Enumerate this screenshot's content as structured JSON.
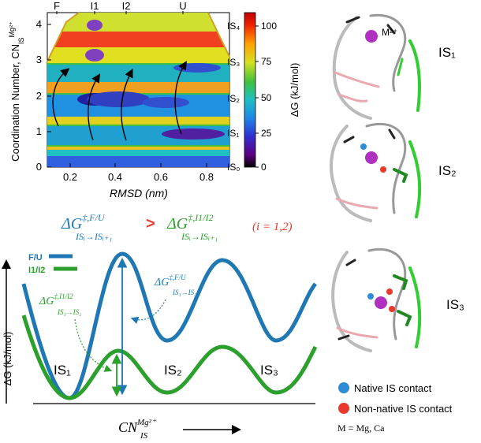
{
  "heatmap": {
    "ylabel": "Coordination Number, CN",
    "ylabel_sup": "Mg²⁺",
    "ylabel_sub": "IS",
    "xlabel": "RMSD (nm)",
    "xticks": [
      "0.2",
      "0.4",
      "0.6",
      "0.8"
    ],
    "yticks": [
      "0",
      "1",
      "2",
      "3",
      "4"
    ],
    "top_labels": [
      "F",
      "I1",
      "I2",
      "U"
    ],
    "state_labels": [
      "IS₄",
      "IS₃",
      "IS₂",
      "IS₁",
      "IS₀"
    ],
    "colorbar_label": "ΔG (kJ/mol)",
    "colorbar_ticks": [
      "100",
      "75",
      "50",
      "25",
      "0"
    ]
  },
  "comparison": {
    "left_main": "ΔG",
    "left_sup": "‡,F/U",
    "left_sub": "ISᵢ→ISᵢ₊₁",
    "gt": ">",
    "right_main": "ΔG",
    "right_sup": "‡,I1/I2",
    "right_sub": "ISᵢ→ISᵢ₊₁",
    "condition": "(i = 1,2)"
  },
  "landscape": {
    "legend": [
      {
        "label": "F/U",
        "color": "#1f77b4"
      },
      {
        "label": "I1/I2",
        "color": "#2ca02c"
      }
    ],
    "ylabel": "ΔG (kJ/mol)",
    "xlabel_main": "CN",
    "xlabel_sup": "Mg²⁺",
    "xlabel_sub": "IS",
    "wells": [
      "IS₁",
      "IS₂",
      "IS₃"
    ],
    "annot_blue_main": "ΔG",
    "annot_blue_sup": "‡,F/U",
    "annot_blue_sub": "IS₁→IS₂",
    "annot_green_main": "ΔG",
    "annot_green_sup": "‡,I1/I2",
    "annot_green_sub": "IS₁→IS₂"
  },
  "structures": {
    "ion_label": "M²⁺",
    "states": [
      "IS₁",
      "IS₂",
      "IS₃"
    ]
  },
  "key": {
    "native": "Native IS contact",
    "nonnative": "Non-native IS contact",
    "note": "M = Mg, Ca",
    "native_color": "#2e8bd6",
    "nonnative_color": "#e8392c"
  }
}
